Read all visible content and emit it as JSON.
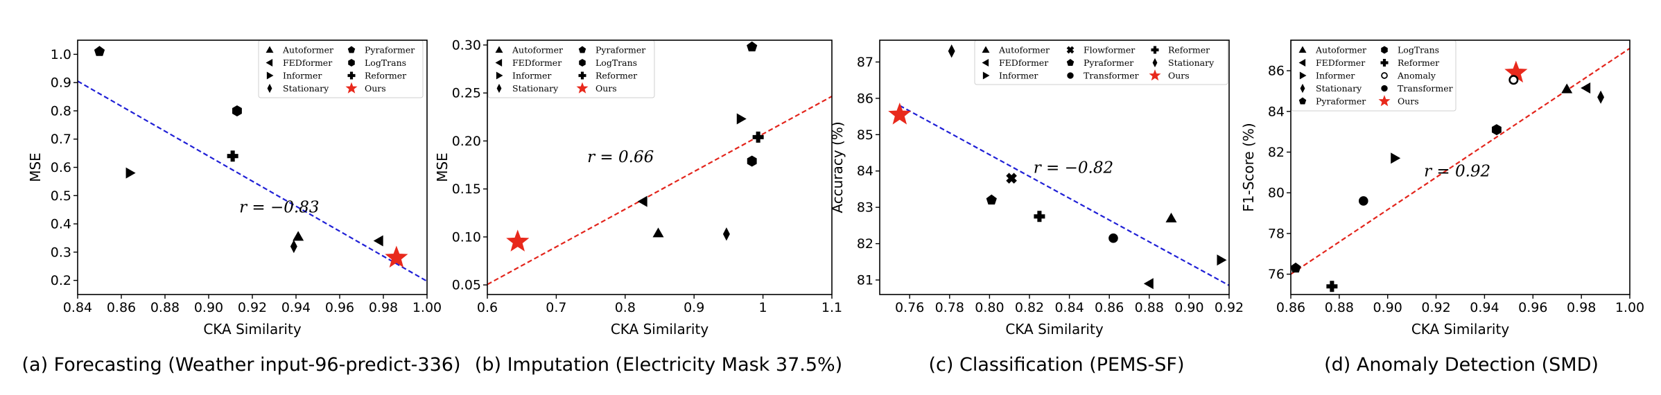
{
  "chart_data": [
    {
      "type": "scatter",
      "caption": "(a) Forecasting (Weather input-96-predict-336)",
      "xlabel": "CKA Similarity",
      "ylabel": "MSE",
      "xlim": [
        0.84,
        1.0
      ],
      "ylim": [
        0.15,
        1.05
      ],
      "xticks": [
        0.84,
        0.86,
        0.88,
        0.9,
        0.92,
        0.94,
        0.96,
        0.98,
        1.0
      ],
      "xtick_labels": [
        "0.84",
        "0.86",
        "0.88",
        "0.90",
        "0.92",
        "0.94",
        "0.96",
        "0.98",
        "1.00"
      ],
      "yticks": [
        0.2,
        0.3,
        0.4,
        0.5,
        0.6,
        0.7,
        0.8,
        0.9,
        1.0
      ],
      "ytick_labels": [
        "0.2",
        "0.3",
        "0.4",
        "0.5",
        "0.6",
        "0.7",
        "0.8",
        "0.9",
        "1.0"
      ],
      "fit_line": {
        "color": "#1f1fd6",
        "x": [
          0.84,
          1.0
        ],
        "y": [
          0.905,
          0.197
        ]
      },
      "correlation_label": "r = −0.83",
      "correlation_pos": [
        0.914,
        0.44
      ],
      "legend": {
        "columns": 2,
        "entries": [
          {
            "name": "Autoformer",
            "marker": "triangle-up"
          },
          {
            "name": "FEDformer",
            "marker": "triangle-left"
          },
          {
            "name": "Informer",
            "marker": "triangle-right"
          },
          {
            "name": "Stationary",
            "marker": "diamond"
          },
          {
            "name": "Pyraformer",
            "marker": "pentagon"
          },
          {
            "name": "LogTrans",
            "marker": "hexagon"
          },
          {
            "name": "Reformer",
            "marker": "plus"
          },
          {
            "name": "Ours",
            "marker": "star"
          }
        ]
      },
      "points": [
        {
          "model": "Pyraformer",
          "marker": "pentagon",
          "x": 0.85,
          "y": 1.01
        },
        {
          "model": "LogTrans",
          "marker": "hexagon",
          "x": 0.913,
          "y": 0.8
        },
        {
          "model": "Reformer",
          "marker": "plus",
          "x": 0.911,
          "y": 0.64
        },
        {
          "model": "Informer",
          "marker": "triangle-right",
          "x": 0.864,
          "y": 0.58
        },
        {
          "model": "Autoformer",
          "marker": "triangle-up",
          "x": 0.941,
          "y": 0.355
        },
        {
          "model": "Stationary",
          "marker": "diamond",
          "x": 0.939,
          "y": 0.32
        },
        {
          "model": "FEDformer",
          "marker": "triangle-left",
          "x": 0.978,
          "y": 0.34
        },
        {
          "model": "Ours",
          "marker": "star",
          "x": 0.986,
          "y": 0.28
        }
      ]
    },
    {
      "type": "scatter",
      "caption": "(b) Imputation (Electricity Mask 37.5%)",
      "xlabel": "CKA Similarity",
      "ylabel": "MSE",
      "xlim": [
        0.6,
        1.1
      ],
      "ylim": [
        0.04,
        0.305
      ],
      "xticks": [
        0.6,
        0.7,
        0.8,
        0.9,
        1.0,
        1.1
      ],
      "xtick_labels": [
        "0.6",
        "0.7",
        "0.8",
        "0.9",
        "1",
        "1.1"
      ],
      "yticks": [
        0.05,
        0.1,
        0.15,
        0.2,
        0.25,
        0.3
      ],
      "ytick_labels": [
        "0.05",
        "0.10",
        "0.15",
        "0.20",
        "0.25",
        "0.30"
      ],
      "fit_line": {
        "color": "#e3241b",
        "x": [
          0.6,
          1.1
        ],
        "y": [
          0.0505,
          0.2465
        ]
      },
      "correlation_label": "r = 0.66",
      "correlation_pos": [
        0.745,
        0.178
      ],
      "legend": {
        "columns": 2,
        "entries": [
          {
            "name": "Autoformer",
            "marker": "triangle-up"
          },
          {
            "name": "FEDformer",
            "marker": "triangle-left"
          },
          {
            "name": "Informer",
            "marker": "triangle-right"
          },
          {
            "name": "Stationary",
            "marker": "diamond"
          },
          {
            "name": "Pyraformer",
            "marker": "pentagon"
          },
          {
            "name": "LogTrans",
            "marker": "hexagon"
          },
          {
            "name": "Reformer",
            "marker": "plus"
          },
          {
            "name": "Ours",
            "marker": "star"
          }
        ]
      },
      "points": [
        {
          "model": "Pyraformer",
          "marker": "pentagon",
          "x": 0.984,
          "y": 0.298
        },
        {
          "model": "Informer",
          "marker": "triangle-right",
          "x": 0.968,
          "y": 0.223
        },
        {
          "model": "Reformer",
          "marker": "plus",
          "x": 0.993,
          "y": 0.204
        },
        {
          "model": "LogTrans",
          "marker": "hexagon",
          "x": 0.984,
          "y": 0.179
        },
        {
          "model": "FEDformer",
          "marker": "triangle-left",
          "x": 0.826,
          "y": 0.137
        },
        {
          "model": "Autoformer",
          "marker": "triangle-up",
          "x": 0.848,
          "y": 0.104
        },
        {
          "model": "Stationary",
          "marker": "diamond",
          "x": 0.947,
          "y": 0.103
        },
        {
          "model": "Ours",
          "marker": "star",
          "x": 0.644,
          "y": 0.095
        }
      ]
    },
    {
      "type": "scatter",
      "caption": "(c) Classification (PEMS-SF)",
      "xlabel": "CKA Similarity",
      "ylabel": "Accuracy (%)",
      "xlim": [
        0.745,
        0.92
      ],
      "ylim": [
        80.6,
        87.6
      ],
      "xticks": [
        0.76,
        0.78,
        0.8,
        0.82,
        0.84,
        0.86,
        0.88,
        0.9,
        0.92
      ],
      "xtick_labels": [
        "0.76",
        "0.78",
        "0.80",
        "0.82",
        "0.84",
        "0.86",
        "0.88",
        "0.90",
        "0.92"
      ],
      "yticks": [
        81,
        82,
        83,
        84,
        85,
        86,
        87
      ],
      "ytick_labels": [
        "81",
        "82",
        "83",
        "84",
        "85",
        "86",
        "87"
      ],
      "fit_line": {
        "color": "#1f1fd6",
        "x": [
          0.755,
          0.92
        ],
        "y": [
          85.8,
          80.85
        ]
      },
      "correlation_label": "r = −0.82",
      "correlation_pos": [
        0.822,
        83.95
      ],
      "legend": {
        "columns": 3,
        "entries": [
          {
            "name": "Autoformer",
            "marker": "triangle-up"
          },
          {
            "name": "FEDformer",
            "marker": "triangle-left"
          },
          {
            "name": "Informer",
            "marker": "triangle-right"
          },
          {
            "name": "Flowformer",
            "marker": "x"
          },
          {
            "name": "Pyraformer",
            "marker": "pentagon"
          },
          {
            "name": "Transformer",
            "marker": "circle"
          },
          {
            "name": "Reformer",
            "marker": "plus"
          },
          {
            "name": "Stationary",
            "marker": "diamond"
          },
          {
            "name": "Ours",
            "marker": "star"
          }
        ]
      },
      "points": [
        {
          "model": "Stationary",
          "marker": "diamond",
          "x": 0.781,
          "y": 87.3
        },
        {
          "model": "Ours",
          "marker": "star",
          "x": 0.755,
          "y": 85.55
        },
        {
          "model": "Flowformer",
          "marker": "x",
          "x": 0.811,
          "y": 83.8
        },
        {
          "model": "Pyraformer",
          "marker": "pentagon",
          "x": 0.801,
          "y": 83.2
        },
        {
          "model": "Reformer",
          "marker": "plus",
          "x": 0.825,
          "y": 82.75
        },
        {
          "model": "Autoformer",
          "marker": "triangle-up",
          "x": 0.891,
          "y": 82.7
        },
        {
          "model": "Transformer",
          "marker": "circle",
          "x": 0.862,
          "y": 82.15
        },
        {
          "model": "Informer",
          "marker": "triangle-right",
          "x": 0.916,
          "y": 81.55
        },
        {
          "model": "FEDformer",
          "marker": "triangle-left",
          "x": 0.88,
          "y": 80.9
        }
      ]
    },
    {
      "type": "scatter",
      "caption": "(d) Anomaly Detection (SMD)",
      "xlabel": "CKA Similarity",
      "ylabel": "F1-Score (%)",
      "xlim": [
        0.86,
        1.0
      ],
      "ylim": [
        75.0,
        87.5
      ],
      "xticks": [
        0.86,
        0.88,
        0.9,
        0.92,
        0.94,
        0.96,
        0.98,
        1.0
      ],
      "xtick_labels": [
        "0.86",
        "0.88",
        "0.90",
        "0.92",
        "0.94",
        "0.96",
        "0.98",
        "1.00"
      ],
      "yticks": [
        76,
        78,
        80,
        82,
        84,
        86
      ],
      "ytick_labels": [
        "76",
        "78",
        "80",
        "82",
        "84",
        "86"
      ],
      "fit_line": {
        "color": "#e3241b",
        "x": [
          0.86,
          1.0
        ],
        "y": [
          76.0,
          87.1
        ]
      },
      "correlation_label": "r = 0.92",
      "correlation_pos": [
        0.915,
        80.8
      ],
      "legend": {
        "columns": 2,
        "entries": [
          {
            "name": "Autoformer",
            "marker": "triangle-up"
          },
          {
            "name": "FEDformer",
            "marker": "triangle-left"
          },
          {
            "name": "Informer",
            "marker": "triangle-right"
          },
          {
            "name": "Stationary",
            "marker": "diamond"
          },
          {
            "name": "Pyraformer",
            "marker": "pentagon"
          },
          {
            "name": "LogTrans",
            "marker": "hexagon"
          },
          {
            "name": "Reformer",
            "marker": "plus"
          },
          {
            "name": "Anomaly",
            "marker": "open-circle"
          },
          {
            "name": "Transformer",
            "marker": "circle"
          },
          {
            "name": "Ours",
            "marker": "star"
          }
        ]
      },
      "points": [
        {
          "model": "Ours",
          "marker": "star",
          "x": 0.953,
          "y": 85.9
        },
        {
          "model": "Anomaly",
          "marker": "open-circle",
          "x": 0.952,
          "y": 85.55
        },
        {
          "model": "Autoformer",
          "marker": "triangle-up",
          "x": 0.974,
          "y": 85.1
        },
        {
          "model": "FEDformer",
          "marker": "triangle-left",
          "x": 0.982,
          "y": 85.15
        },
        {
          "model": "Stationary",
          "marker": "diamond",
          "x": 0.988,
          "y": 84.7
        },
        {
          "model": "LogTrans",
          "marker": "hexagon",
          "x": 0.945,
          "y": 83.1
        },
        {
          "model": "Informer",
          "marker": "triangle-right",
          "x": 0.903,
          "y": 81.7
        },
        {
          "model": "Transformer",
          "marker": "circle",
          "x": 0.89,
          "y": 79.6
        },
        {
          "model": "Pyraformer",
          "marker": "pentagon",
          "x": 0.862,
          "y": 76.3
        },
        {
          "model": "Reformer",
          "marker": "plus",
          "x": 0.877,
          "y": 75.4
        }
      ]
    }
  ]
}
